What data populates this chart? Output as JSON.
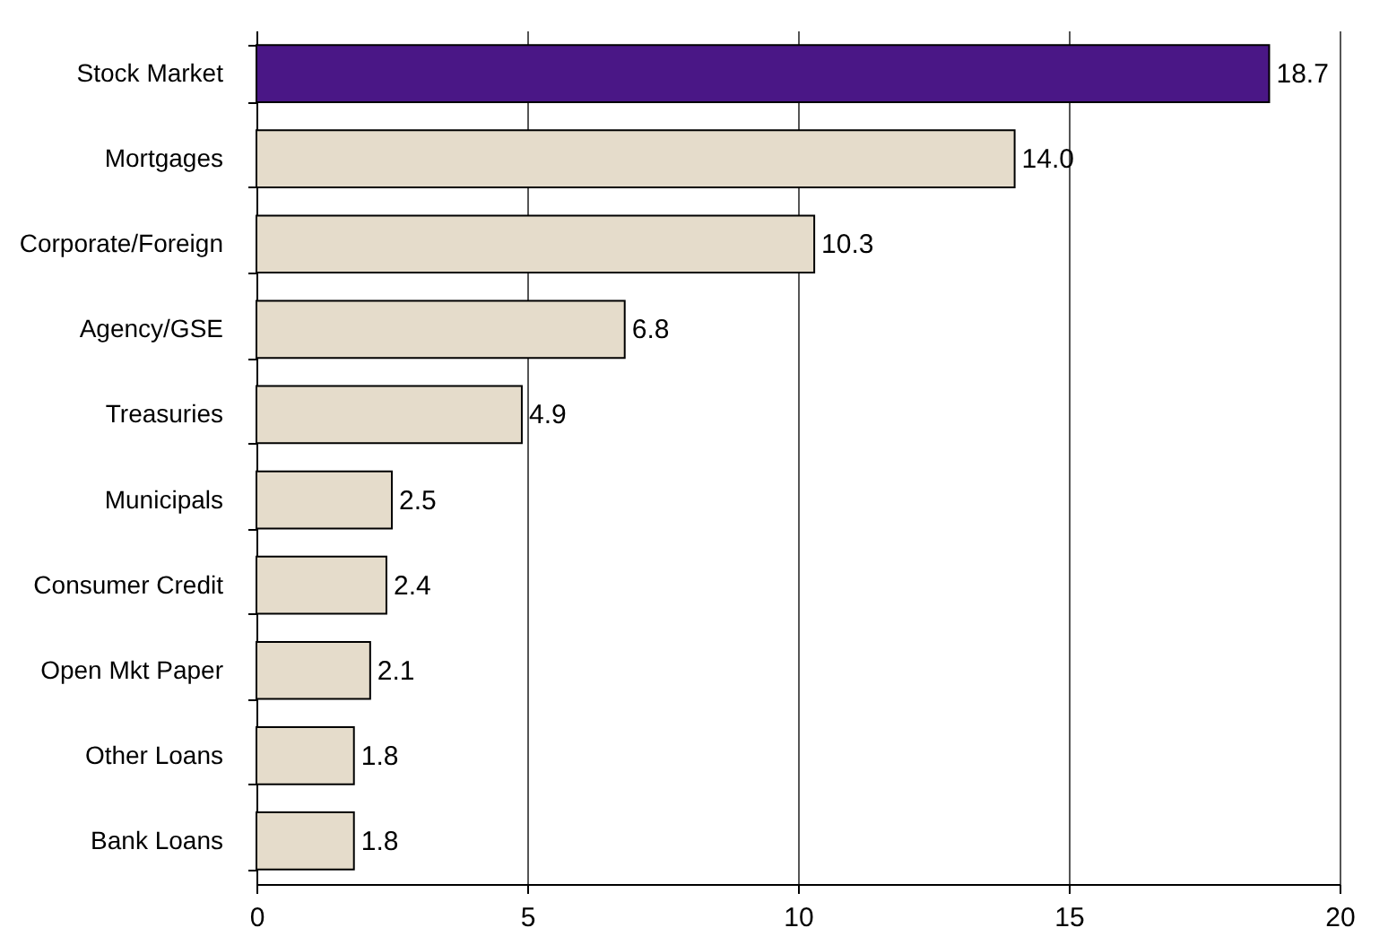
{
  "chart_data": {
    "type": "bar",
    "orientation": "horizontal",
    "categories": [
      "Stock Market",
      "Mortgages",
      "Corporate/Foreign",
      "Agency/GSE",
      "Treasuries",
      "Municipals",
      "Consumer Credit",
      "Open Mkt Paper",
      "Other Loans",
      "Bank Loans"
    ],
    "values": [
      18.7,
      14.0,
      10.3,
      6.8,
      4.9,
      2.5,
      2.4,
      2.1,
      1.8,
      1.8
    ],
    "colors": [
      "#4a1786",
      "#e5dccb",
      "#e5dccb",
      "#e5dccb",
      "#e5dccb",
      "#e5dccb",
      "#e5dccb",
      "#e5dccb",
      "#e5dccb",
      "#e5dccb"
    ],
    "value_labels": [
      "18.7",
      "14.0",
      "10.3",
      "6.8",
      "4.9",
      "2.5",
      "2.4",
      "2.1",
      "1.8",
      "1.8"
    ],
    "xlim": [
      0,
      20
    ],
    "xticks": [
      0,
      5,
      10,
      15,
      20
    ],
    "grid": "x"
  }
}
